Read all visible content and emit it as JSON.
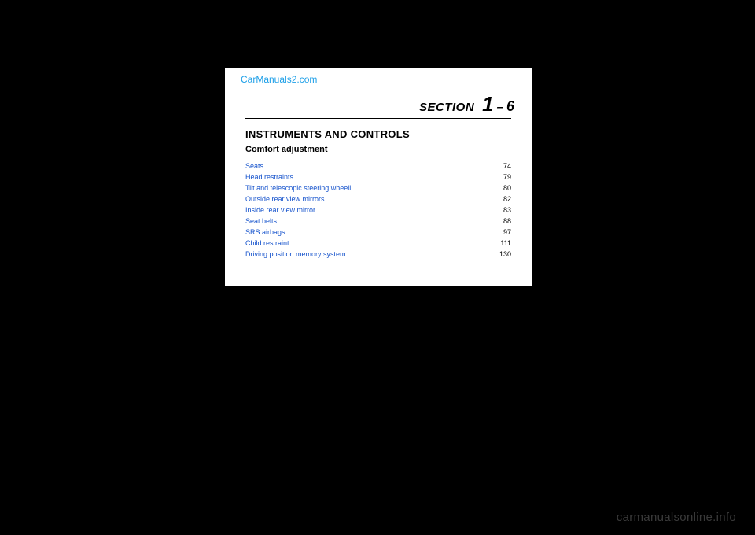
{
  "page": {
    "background_color": "#000000",
    "paper_color": "#ffffff"
  },
  "watermark_top": {
    "text": "CarManuals2.com",
    "color": "#1fa0e8",
    "fontsize": 12
  },
  "section": {
    "word": "SECTION",
    "number": "1",
    "dash": "–",
    "sub": "6",
    "italic": true,
    "bold": true
  },
  "heading": {
    "text": "INSTRUMENTS AND CONTROLS",
    "fontsize": 13,
    "bold": true
  },
  "subheading": {
    "text": "Comfort adjustment",
    "fontsize": 11,
    "bold": true
  },
  "toc": {
    "link_color": "#1452cc",
    "page_color": "#000000",
    "fontsize": 9,
    "items": [
      {
        "label": "Seats",
        "page": "74"
      },
      {
        "label": "Head restraints",
        "page": "79"
      },
      {
        "label": "Tilt and telescopic steering wheell",
        "page": "80"
      },
      {
        "label": "Outside rear view mirrors",
        "page": "82"
      },
      {
        "label": "Inside rear view mirror",
        "page": "83"
      },
      {
        "label": "Seat belts",
        "page": "88"
      },
      {
        "label": "SRS airbags",
        "page": "97"
      },
      {
        "label": "Child restraint",
        "page": "111"
      },
      {
        "label": "Driving position memory system",
        "page": "130"
      }
    ]
  },
  "watermark_bottom": {
    "text": "carmanualsonline.info",
    "color": "#3a3a3a",
    "fontsize": 15
  }
}
